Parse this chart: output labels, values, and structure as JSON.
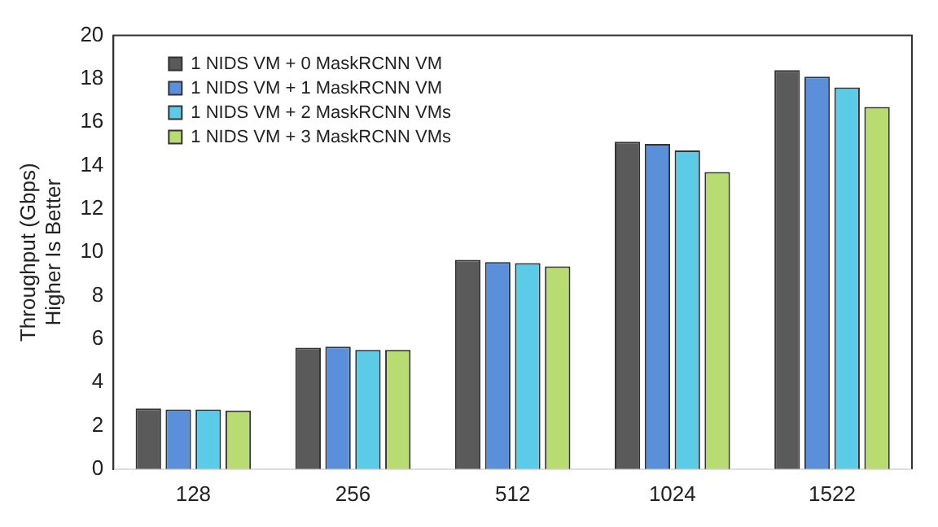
{
  "chart_data": {
    "type": "bar",
    "ylabel": "Throughput (Gbps)\nHigher Is Better",
    "categories": [
      "128",
      "256",
      "512",
      "1024",
      "1522"
    ],
    "series": [
      {
        "name": "1 NIDS VM + 0 MaskRCNN VM",
        "color": "#5a5a5a",
        "values": [
          2.8,
          5.6,
          9.65,
          15.1,
          18.4
        ]
      },
      {
        "name": "1 NIDS VM + 1 MaskRCNN VM",
        "color": "#5b8fd9",
        "values": [
          2.75,
          5.65,
          9.55,
          15.0,
          18.1
        ]
      },
      {
        "name": "1 NIDS VM + 2 MaskRCNN VMs",
        "color": "#5ccbe8",
        "values": [
          2.75,
          5.5,
          9.5,
          14.7,
          17.6
        ]
      },
      {
        "name": "1 NIDS VM + 3 MaskRCNN VMs",
        "color": "#b8dc72",
        "values": [
          2.7,
          5.5,
          9.35,
          13.7,
          16.7
        ]
      }
    ],
    "ylim": [
      0,
      20
    ],
    "yticks": [
      0,
      2,
      4,
      6,
      8,
      10,
      12,
      14,
      16,
      18,
      20
    ],
    "grid": false,
    "legend": "top left"
  }
}
